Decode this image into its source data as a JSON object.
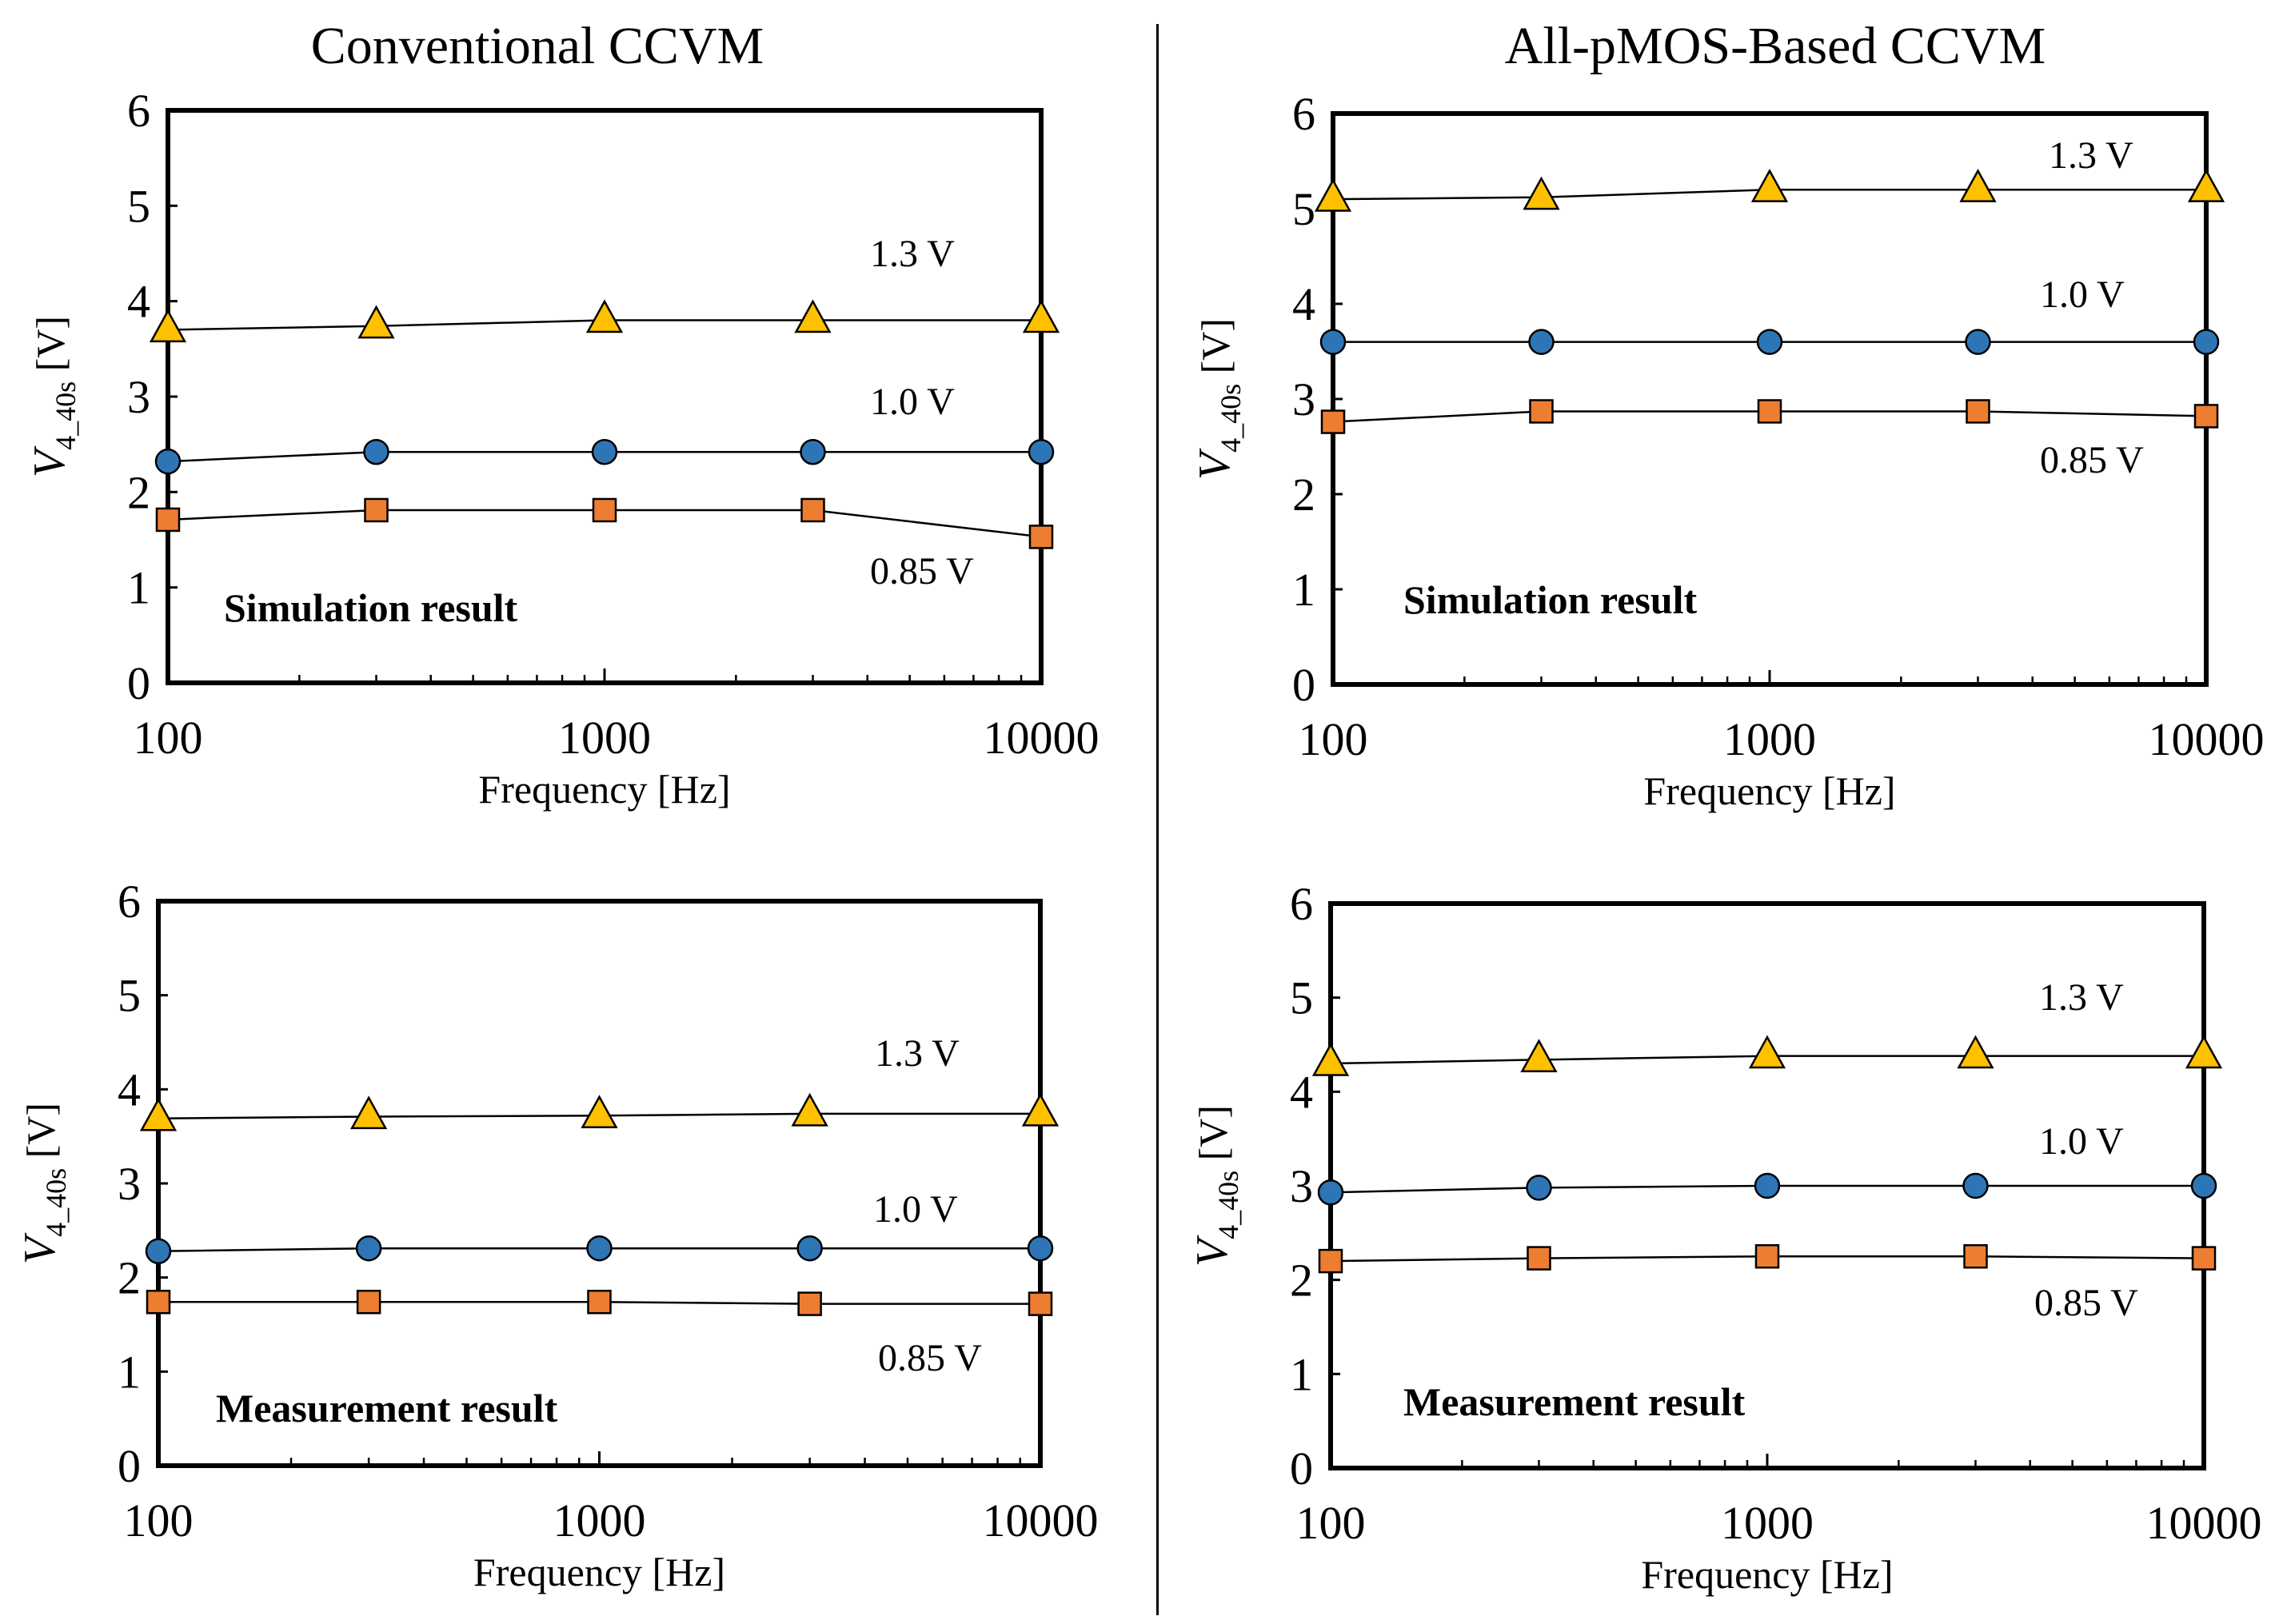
{
  "columns": [
    "Conventional CCVM",
    "All-pMOS-Based CCVM"
  ],
  "chart_data": [
    {
      "type": "line",
      "column": "Conventional CCVM",
      "panel_label": "Simulation result",
      "xlabel": "Frequency [Hz]",
      "ylabel": "V4_40s [V]",
      "xscale": "log",
      "xlim": [
        100,
        10000
      ],
      "ylim": [
        0,
        6
      ],
      "xticks": [
        100,
        1000,
        10000
      ],
      "yticks": [
        0,
        1,
        2,
        3,
        4,
        5,
        6
      ],
      "grid": false,
      "x": [
        100,
        300,
        1000,
        3000,
        10000
      ],
      "series": [
        {
          "name": "1.3 V",
          "marker": "triangle",
          "color": "#FFC000",
          "values": [
            3.7,
            3.74,
            3.8,
            3.8,
            3.8
          ]
        },
        {
          "name": "1.0 V",
          "marker": "circle",
          "color": "#2E75B6",
          "values": [
            2.32,
            2.42,
            2.42,
            2.42,
            2.42
          ]
        },
        {
          "name": "0.85 V",
          "marker": "square",
          "color": "#ED7D31",
          "values": [
            1.71,
            1.81,
            1.81,
            1.81,
            1.53
          ]
        }
      ]
    },
    {
      "type": "line",
      "column": "All-pMOS-Based CCVM",
      "panel_label": "Simulation result",
      "xlabel": "Frequency [Hz]",
      "ylabel": "V4_40s [V]",
      "xscale": "log",
      "xlim": [
        100,
        10000
      ],
      "ylim": [
        0,
        6
      ],
      "xticks": [
        100,
        1000,
        10000
      ],
      "yticks": [
        0,
        1,
        2,
        3,
        4,
        5,
        6
      ],
      "grid": false,
      "x": [
        100,
        300,
        1000,
        3000,
        10000
      ],
      "series": [
        {
          "name": "1.3 V",
          "marker": "triangle",
          "color": "#FFC000",
          "values": [
            5.1,
            5.12,
            5.2,
            5.2,
            5.2
          ]
        },
        {
          "name": "1.0 V",
          "marker": "circle",
          "color": "#2E75B6",
          "values": [
            3.6,
            3.6,
            3.6,
            3.6,
            3.6
          ]
        },
        {
          "name": "0.85 V",
          "marker": "square",
          "color": "#ED7D31",
          "values": [
            2.76,
            2.87,
            2.87,
            2.87,
            2.82
          ]
        }
      ]
    },
    {
      "type": "line",
      "column": "Conventional CCVM",
      "panel_label": "Measurement result",
      "xlabel": "Frequency [Hz]",
      "ylabel": "V4_40s [V]",
      "xscale": "log",
      "xlim": [
        100,
        10000
      ],
      "ylim": [
        0,
        6
      ],
      "xticks": [
        100,
        1000,
        10000
      ],
      "yticks": [
        0,
        1,
        2,
        3,
        4,
        5,
        6
      ],
      "grid": false,
      "x": [
        100,
        300,
        1000,
        3000,
        10000
      ],
      "series": [
        {
          "name": "1.3 V",
          "marker": "triangle",
          "color": "#FFC000",
          "values": [
            3.69,
            3.71,
            3.72,
            3.74,
            3.74
          ]
        },
        {
          "name": "1.0 V",
          "marker": "circle",
          "color": "#2E75B6",
          "values": [
            2.28,
            2.31,
            2.31,
            2.31,
            2.31
          ]
        },
        {
          "name": "0.85 V",
          "marker": "square",
          "color": "#ED7D31",
          "values": [
            1.74,
            1.74,
            1.74,
            1.72,
            1.72
          ]
        }
      ]
    },
    {
      "type": "line",
      "column": "All-pMOS-Based CCVM",
      "panel_label": "Measurement result",
      "xlabel": "Frequency [Hz]",
      "ylabel": "V4_40s [V]",
      "xscale": "log",
      "xlim": [
        100,
        10000
      ],
      "ylim": [
        0,
        6
      ],
      "xticks": [
        100,
        1000,
        10000
      ],
      "yticks": [
        0,
        1,
        2,
        3,
        4,
        5,
        6
      ],
      "grid": false,
      "x": [
        100,
        300,
        1000,
        3000,
        10000
      ],
      "series": [
        {
          "name": "1.3 V",
          "marker": "triangle",
          "color": "#FFC000",
          "values": [
            4.3,
            4.34,
            4.38,
            4.38,
            4.38
          ]
        },
        {
          "name": "1.0 V",
          "marker": "circle",
          "color": "#2E75B6",
          "values": [
            2.93,
            2.98,
            3.0,
            3.0,
            3.0
          ]
        },
        {
          "name": "0.85 V",
          "marker": "square",
          "color": "#ED7D31",
          "values": [
            2.2,
            2.23,
            2.25,
            2.25,
            2.23
          ]
        }
      ]
    }
  ]
}
